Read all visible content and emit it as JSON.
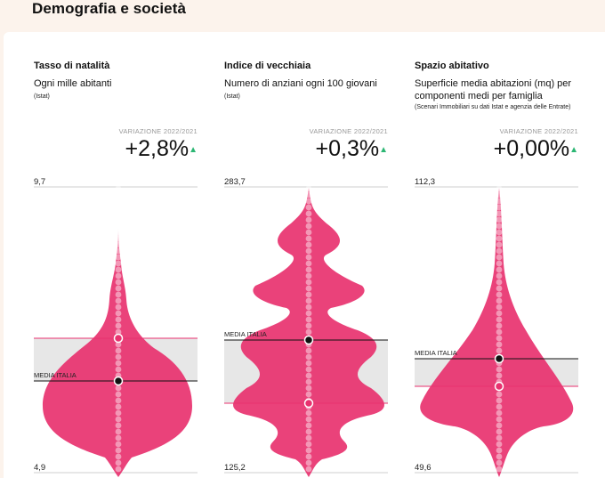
{
  "section_title": "Demografia e società",
  "variation_label": "VARIAZIONE 2022/2021",
  "media_label": "MEDIA ITALIA",
  "colors": {
    "accent": "#e8326f",
    "band": "#e7e7e7",
    "up": "#2bb673"
  },
  "panels": [
    {
      "title": "Tasso di natalità",
      "subtitle": "Ogni mille abitanti",
      "source": "(Istat)",
      "variation": "+2,8%",
      "max_label": "9,7",
      "min_label": "4,9"
    },
    {
      "title": "Indice di vecchiaia",
      "subtitle": "Numero di anziani ogni 100 giovani",
      "source": "(Istat)",
      "variation": "+0,3%",
      "max_label": "283,7",
      "min_label": "125,2"
    },
    {
      "title": "Spazio abitativo",
      "subtitle": "Superficie media abitazioni (mq) per componenti medi per famiglia",
      "source": "(Scenari Immobiliari su dati Istat e agenzia delle Entrate)",
      "variation": "+0,00%",
      "max_label": "112,3",
      "min_label": "49,6"
    }
  ]
}
